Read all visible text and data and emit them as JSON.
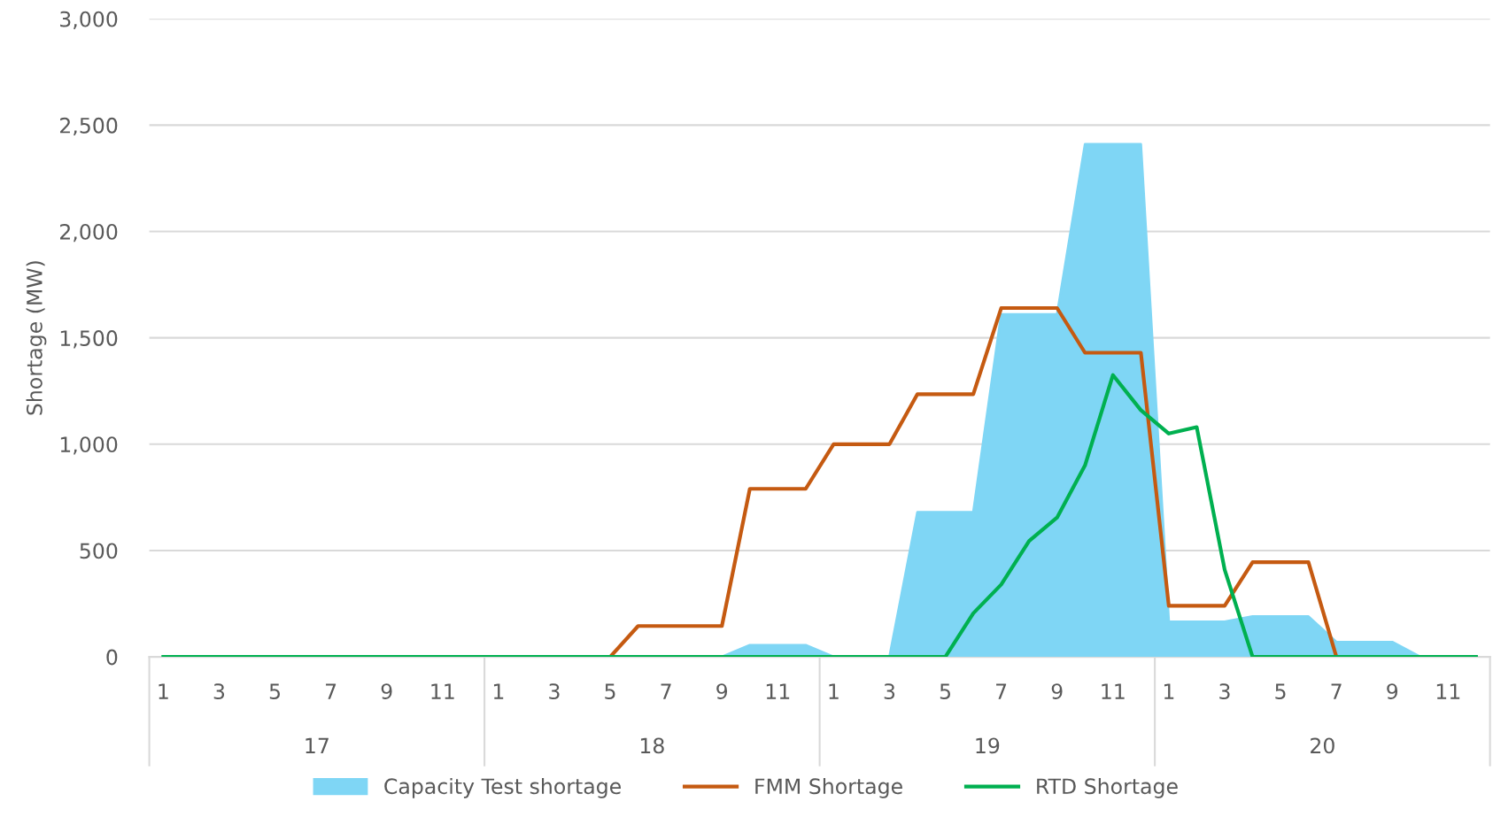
{
  "chart_data": {
    "type": "line",
    "ylabel": "Shortage (MW)",
    "categories": [
      "1",
      null,
      "3",
      null,
      "5",
      null,
      "7",
      null,
      "9",
      null,
      "11",
      null,
      "1",
      null,
      "3",
      null,
      "5",
      null,
      "7",
      null,
      "9",
      null,
      "11",
      null,
      "1",
      null,
      "3",
      null,
      "5",
      null,
      "7",
      null,
      "9",
      null,
      "11",
      null,
      "1",
      null,
      "3",
      null,
      "5",
      null,
      "7",
      null,
      "9",
      null,
      "11",
      null
    ],
    "annotations": [
      "17",
      "18",
      "19",
      "20"
    ],
    "ylim": [
      0,
      3000
    ],
    "yticks": [
      0,
      {
        "value": 500,
        "label": "500"
      },
      {
        "value": 1000,
        "label": "1,000"
      },
      {
        "value": 1500,
        "label": "1,500"
      },
      {
        "value": 2000,
        "label": "2,000"
      },
      {
        "value": 2500,
        "label": "2,500"
      },
      {
        "value": 3000,
        "label": "3,000"
      }
    ],
    "grid": "y",
    "legend": "bottom",
    "marker": "none",
    "line_style": "solid",
    "series": [
      {
        "name": "Capacity Test shortage",
        "type": "area",
        "color": "#7fd6f5",
        "values": [
          0,
          0,
          0,
          0,
          0,
          0,
          0,
          0,
          0,
          0,
          0,
          0,
          0,
          0,
          0,
          0,
          0,
          0,
          0,
          0,
          0,
          55,
          55,
          55,
          0,
          0,
          0,
          680,
          680,
          680,
          1610,
          1610,
          1610,
          2410,
          2410,
          2410,
          165,
          165,
          165,
          190,
          190,
          190,
          70,
          70,
          70,
          0,
          0,
          0
        ]
      },
      {
        "name": "FMM Shortage",
        "color": "#c55a11",
        "values": [
          null,
          null,
          null,
          null,
          null,
          null,
          null,
          null,
          null,
          null,
          null,
          null,
          null,
          null,
          null,
          0,
          0,
          145,
          145,
          145,
          145,
          790,
          790,
          790,
          1000,
          1000,
          1000,
          1235,
          1235,
          1235,
          1640,
          1640,
          1640,
          1430,
          1430,
          1430,
          240,
          240,
          240,
          445,
          445,
          445,
          0,
          0,
          null,
          null,
          null,
          null
        ]
      },
      {
        "name": "RTD Shortage",
        "color": "#00b050",
        "values": [
          0,
          0,
          0,
          0,
          0,
          0,
          0,
          0,
          0,
          0,
          0,
          0,
          0,
          0,
          0,
          0,
          0,
          0,
          0,
          0,
          0,
          0,
          0,
          0,
          0,
          0,
          0,
          0,
          0,
          205,
          340,
          545,
          655,
          900,
          1325,
          1160,
          1050,
          1080,
          410,
          0,
          0,
          0,
          0,
          0,
          0,
          0,
          0,
          0
        ]
      }
    ]
  }
}
